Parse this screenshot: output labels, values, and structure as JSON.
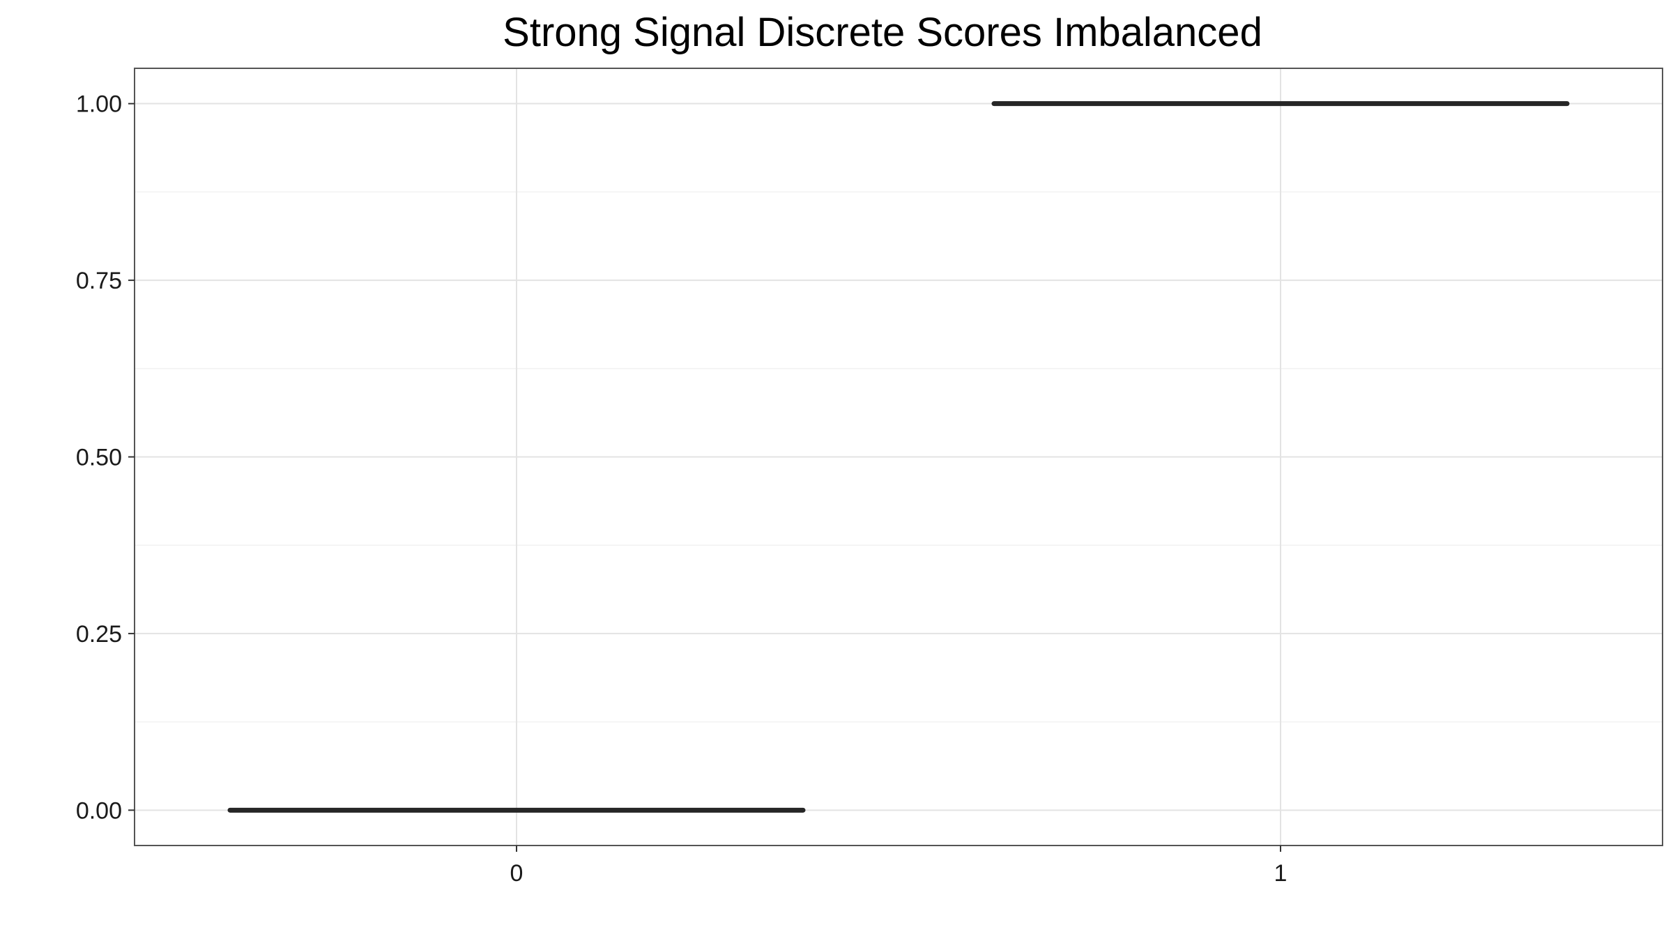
{
  "chart_data": {
    "type": "box",
    "title": "Strong Signal Discrete Scores Imbalanced",
    "xlabel": "",
    "ylabel": "",
    "categories": [
      "0",
      "1"
    ],
    "values": [
      0,
      1
    ],
    "ylim": [
      -0.05,
      1.05
    ],
    "yticks": [
      0.0,
      0.25,
      0.5,
      0.75,
      1.0
    ],
    "ytick_labels": [
      "0.00",
      "0.25",
      "0.50",
      "0.75",
      "1.00"
    ],
    "grid": true,
    "legend": "none",
    "colors": {
      "series": "#262626",
      "grid_major": "#e3e3e3",
      "grid_minor": "#f2f2f2",
      "panel_border": "#555555"
    }
  }
}
